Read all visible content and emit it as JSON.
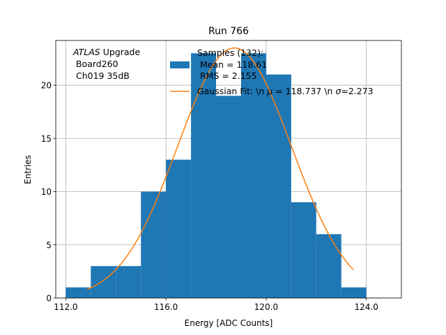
{
  "chart_data": {
    "type": "bar",
    "title": "Run 766",
    "xlabel": "Energy [ADC Counts]",
    "ylabel": "Entries",
    "xlim": [
      111.6,
      125.4
    ],
    "ylim": [
      0,
      24.2
    ],
    "grid": true,
    "x_ticks": [
      112,
      116,
      120,
      124
    ],
    "x_tick_labels": [
      "112.0",
      "116.0",
      "120.0",
      "124.0"
    ],
    "y_ticks": [
      0,
      5,
      10,
      15,
      20
    ],
    "y_tick_labels": [
      "0",
      "5",
      "10",
      "15",
      "20"
    ],
    "bin_edges": [
      112,
      113,
      114,
      115,
      116,
      117,
      118,
      119,
      120,
      121,
      122,
      123,
      124
    ],
    "counts": [
      1,
      3,
      3,
      10,
      13,
      23,
      19,
      23,
      21,
      9,
      6,
      1
    ],
    "histogram_color": "#1f77b4",
    "fit_color": "#ff7f0e",
    "fit": {
      "amplitude": 23.5,
      "mu": 118.737,
      "sigma": 2.273,
      "x_range": [
        112.86,
        123.48
      ]
    },
    "annotation": {
      "italic": "ATLAS",
      "line1_rest": " Upgrade",
      "line2": " Board260",
      "line3": " Ch019 35dB"
    },
    "legend": {
      "position": "top-right",
      "hist_line1": "Samples (132):",
      "hist_line2": " Mean = 118.61",
      "hist_line3": " RMS = 2.155",
      "fit_prefix": "Gaussian Fit: \\n ",
      "fit_mu_symbol": "μ",
      "fit_mid": " = 118.737 \\n ",
      "fit_sigma_symbol": "σ",
      "fit_suffix": "=2.273"
    }
  }
}
